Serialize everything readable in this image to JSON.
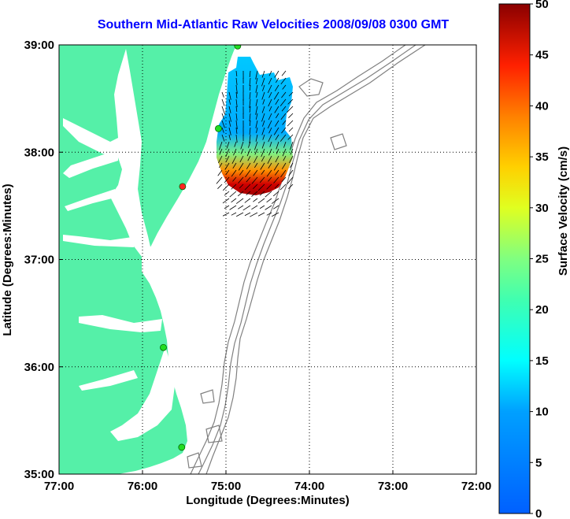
{
  "title": "Southern Mid-Atlantic Raw Velocities 2008/09/08 0300 GMT",
  "map": {
    "xlabel": "Longitude (Degrees:Minutes)",
    "ylabel": "Latitude (Degrees:Minutes)",
    "x_ticks": [
      "77:00",
      "76:00",
      "75:00",
      "74:00",
      "73:00",
      "72:00"
    ],
    "y_ticks": [
      "39:00",
      "38:00",
      "37:00",
      "36:00",
      "35:00"
    ],
    "lon_range": [
      -77,
      -72
    ],
    "lat_range": [
      35,
      39
    ],
    "grid": "dotted",
    "land_color": "#55f0a8",
    "contour_color": "#808080",
    "station_color": "#22dd22",
    "station_alert_color": "#ff2222"
  },
  "colorbar": {
    "label": "Surface Velocity (cm/s)",
    "ticks": [
      "50",
      "45",
      "40",
      "35",
      "30",
      "25",
      "20",
      "15",
      "10",
      "5",
      "0"
    ],
    "range": [
      0,
      50
    ],
    "colormap": "jet"
  },
  "stations": [
    {
      "lon": -74.86,
      "lat": 38.99,
      "status": "ok"
    },
    {
      "lon": -75.09,
      "lat": 38.22,
      "status": "ok"
    },
    {
      "lon": -75.52,
      "lat": 37.68,
      "status": "alert"
    },
    {
      "lon": -75.75,
      "lat": 36.18,
      "status": "ok"
    },
    {
      "lon": -75.53,
      "lat": 35.25,
      "status": "ok"
    }
  ]
}
